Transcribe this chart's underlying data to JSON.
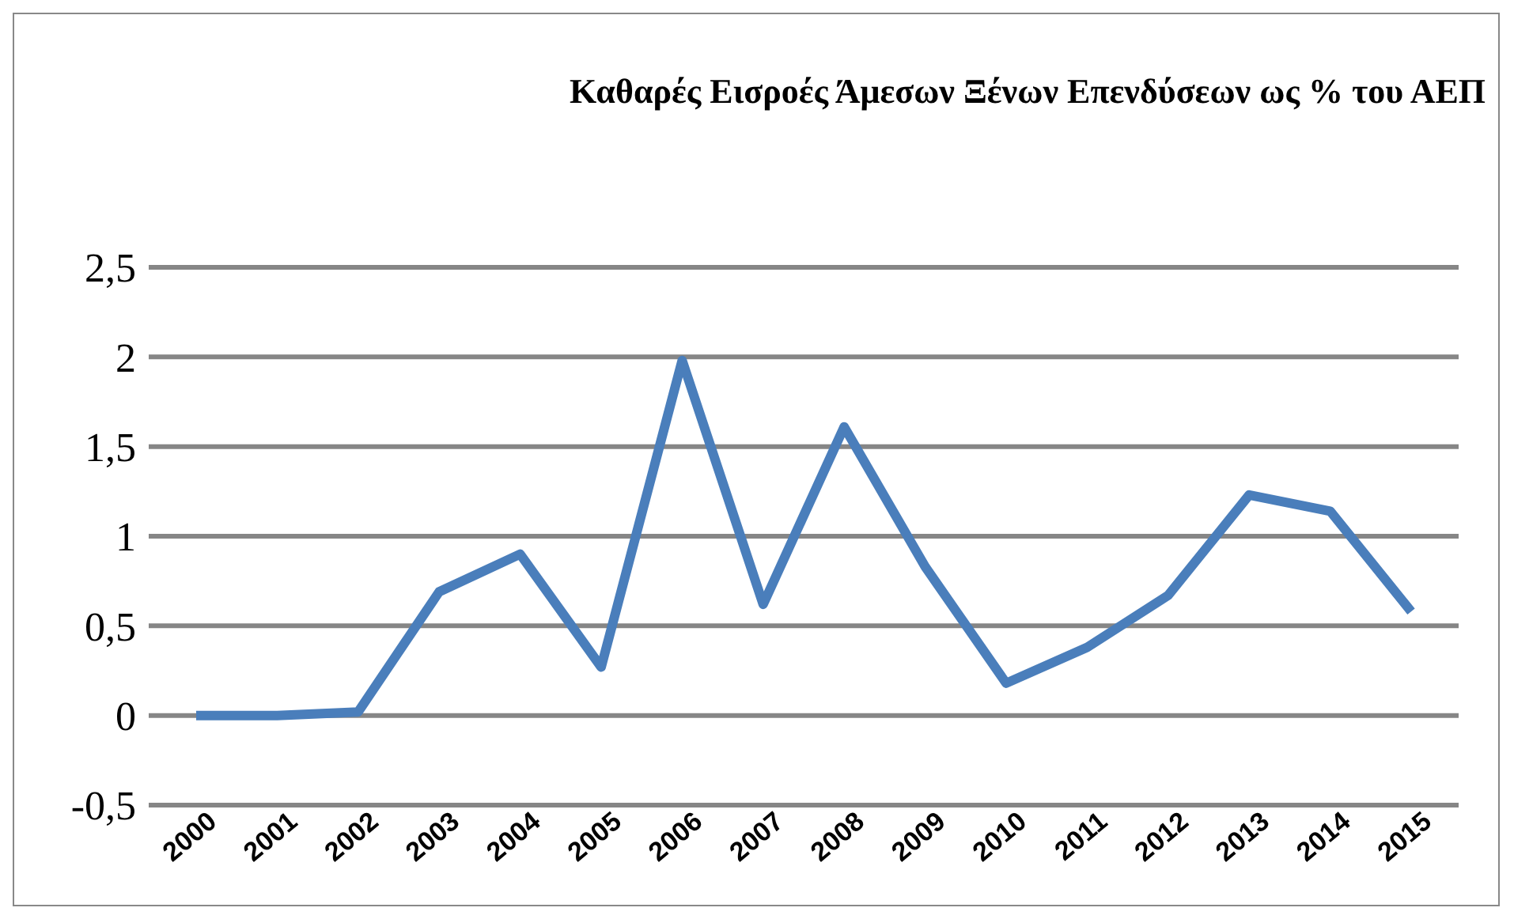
{
  "chart_data": {
    "type": "line",
    "title": "Καθαρές Εισροές Άμεσων Ξένων Επενδύσεων ως % του ΑΕΠ",
    "categories": [
      "2000",
      "2001",
      "2002",
      "2003",
      "2004",
      "2005",
      "2006",
      "2007",
      "2008",
      "2009",
      "2010",
      "2011",
      "2012",
      "2013",
      "2014",
      "2015"
    ],
    "series": [
      {
        "color": "#4a7ebb",
        "values": [
          0,
          0,
          0.02,
          0.69,
          0.9,
          0.27,
          1.98,
          0.62,
          1.61,
          0.83,
          0.18,
          0.38,
          0.67,
          1.23,
          1.14,
          0.58
        ]
      }
    ],
    "ylim": [
      -0.5,
      2.5
    ],
    "yticks": [
      {
        "value": -0.5,
        "label": "-0,5"
      },
      0,
      {
        "value": 0.5,
        "label": "0,5"
      },
      1,
      {
        "value": 1.5,
        "label": "1,5"
      },
      2,
      {
        "value": 2.5,
        "label": "2,5"
      }
    ],
    "grid": "y",
    "legend": false,
    "marker": "none",
    "line_style": "solid"
  }
}
